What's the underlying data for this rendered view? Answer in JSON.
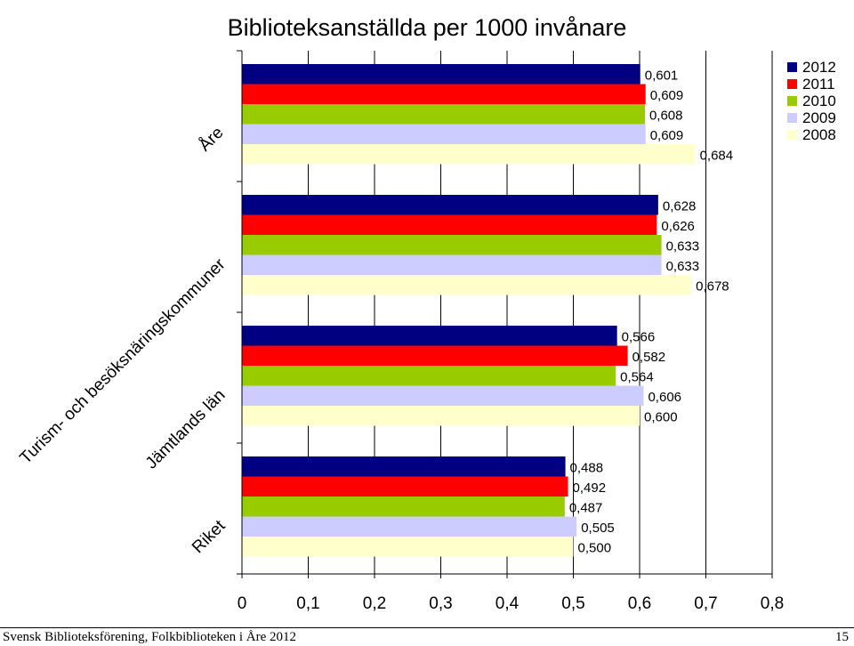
{
  "chart_data": {
    "type": "bar",
    "orientation": "horizontal",
    "title": "Biblioteksanställda per 1000 invånare",
    "categories": [
      "Åre",
      "Turism- och besöksnäringskommuner",
      "Jämtlands län",
      "Riket"
    ],
    "series": [
      {
        "name": "2012",
        "color": "#000080",
        "values": [
          0.601,
          0.628,
          0.566,
          0.488
        ],
        "labels": [
          "0,601",
          "0,628",
          "0,566",
          "0,488"
        ]
      },
      {
        "name": "2011",
        "color": "#ff0000",
        "values": [
          0.609,
          0.626,
          0.582,
          0.492
        ],
        "labels": [
          "0,609",
          "0,626",
          "0,582",
          "0,492"
        ]
      },
      {
        "name": "2010",
        "color": "#99cc00",
        "values": [
          0.608,
          0.633,
          0.564,
          0.487
        ],
        "labels": [
          "0,608",
          "0,633",
          "0,564",
          "0,487"
        ]
      },
      {
        "name": "2009",
        "color": "#ccccff",
        "values": [
          0.609,
          0.633,
          0.606,
          0.505
        ],
        "labels": [
          "0,609",
          "0,633",
          "0,606",
          "0,505"
        ]
      },
      {
        "name": "2008",
        "color": "#ffffcc",
        "values": [
          0.684,
          0.678,
          0.6,
          0.5
        ],
        "labels": [
          "0,684",
          "0,678",
          "0,600",
          "0,500"
        ]
      }
    ],
    "xlim": [
      0,
      0.8
    ],
    "xticks": [
      0,
      0.1,
      0.2,
      0.3,
      0.4,
      0.5,
      0.6,
      0.7,
      0.8
    ],
    "xtick_labels": [
      "0",
      "0,1",
      "0,2",
      "0,3",
      "0,4",
      "0,5",
      "0,6",
      "0,7",
      "0,8"
    ],
    "xlabel": "",
    "ylabel": "",
    "grid": "vertical",
    "legend_position": "top-right"
  },
  "footer": {
    "source": "Svensk Biblioteksförening, Folkbiblioteken i Åre 2012",
    "page_number": "15"
  }
}
